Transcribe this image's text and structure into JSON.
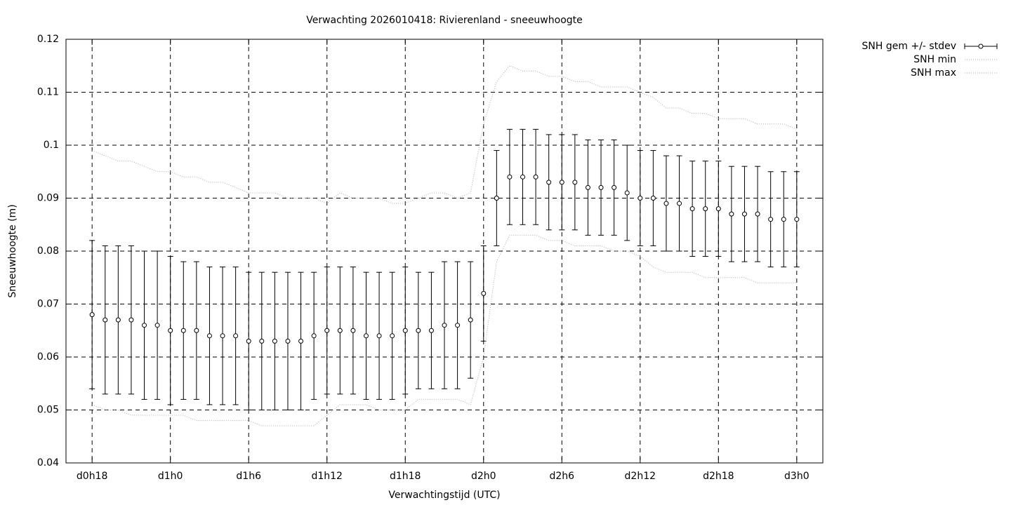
{
  "chart_data": {
    "type": "errorbar-line",
    "title": "Verwachting 2026010418: Rivierenland - sneeuwhoogte",
    "x_label": "Verwachtingstijd (UTC)",
    "y_label": "Sneeuwhoogte (m)",
    "x": [
      18,
      19,
      20,
      21,
      22,
      23,
      24,
      25,
      26,
      27,
      28,
      29,
      30,
      31,
      32,
      33,
      34,
      35,
      36,
      37,
      38,
      39,
      40,
      41,
      42,
      43,
      44,
      45,
      46,
      47,
      48,
      49,
      50,
      51,
      52,
      53,
      54,
      55,
      56,
      57,
      58,
      59,
      60,
      61,
      62,
      63,
      64,
      65,
      66,
      67,
      68,
      69,
      70,
      71,
      72
    ],
    "xlim": [
      16,
      74
    ],
    "xticks": [
      {
        "value": 18,
        "label": "d0h18"
      },
      {
        "value": 24,
        "label": "d1h0"
      },
      {
        "value": 30,
        "label": "d1h6"
      },
      {
        "value": 36,
        "label": "d1h12"
      },
      {
        "value": 42,
        "label": "d1h18"
      },
      {
        "value": 48,
        "label": "d2h0"
      },
      {
        "value": 54,
        "label": "d2h6"
      },
      {
        "value": 60,
        "label": "d2h12"
      },
      {
        "value": 66,
        "label": "d2h18"
      },
      {
        "value": 72,
        "label": "d3h0"
      }
    ],
    "ylim": [
      0.04,
      0.12
    ],
    "yticks": [
      0.04,
      0.05,
      0.06,
      0.07,
      0.08,
      0.09,
      0.1,
      0.11,
      0.12
    ],
    "grid": true,
    "legend": "outside-top-right",
    "series": [
      {
        "name": "SNH gem +/- stdev",
        "color": "#000000",
        "style": "errorbar",
        "values": [
          0.068,
          0.067,
          0.067,
          0.067,
          0.066,
          0.066,
          0.065,
          0.065,
          0.065,
          0.064,
          0.064,
          0.064,
          0.063,
          0.063,
          0.063,
          0.063,
          0.063,
          0.064,
          0.065,
          0.065,
          0.065,
          0.064,
          0.064,
          0.064,
          0.065,
          0.065,
          0.065,
          0.066,
          0.066,
          0.067,
          0.072,
          0.09,
          0.094,
          0.094,
          0.094,
          0.093,
          0.093,
          0.093,
          0.092,
          0.092,
          0.092,
          0.091,
          0.09,
          0.09,
          0.089,
          0.089,
          0.088,
          0.088,
          0.088,
          0.087,
          0.087,
          0.087,
          0.086,
          0.086,
          0.086
        ],
        "errors": [
          0.014,
          0.014,
          0.014,
          0.014,
          0.014,
          0.014,
          0.014,
          0.013,
          0.013,
          0.013,
          0.013,
          0.013,
          0.013,
          0.013,
          0.013,
          0.013,
          0.013,
          0.012,
          0.012,
          0.012,
          0.012,
          0.012,
          0.012,
          0.012,
          0.012,
          0.011,
          0.011,
          0.012,
          0.012,
          0.011,
          0.009,
          0.009,
          0.009,
          0.009,
          0.009,
          0.009,
          0.009,
          0.009,
          0.009,
          0.009,
          0.009,
          0.009,
          0.009,
          0.009,
          0.009,
          0.009,
          0.009,
          0.009,
          0.009,
          0.009,
          0.009,
          0.009,
          0.009,
          0.009,
          0.009
        ]
      },
      {
        "name": "SNH min",
        "color": "#aaaaaa",
        "style": "dotted",
        "values": [
          0.051,
          0.05,
          0.05,
          0.049,
          0.049,
          0.049,
          0.049,
          0.049,
          0.048,
          0.048,
          0.048,
          0.048,
          0.048,
          0.047,
          0.047,
          0.047,
          0.047,
          0.047,
          0.049,
          0.051,
          0.051,
          0.051,
          0.05,
          0.05,
          0.05,
          0.052,
          0.052,
          0.052,
          0.052,
          0.051,
          0.06,
          0.078,
          0.083,
          0.083,
          0.083,
          0.082,
          0.082,
          0.081,
          0.081,
          0.081,
          0.08,
          0.08,
          0.079,
          0.077,
          0.076,
          0.076,
          0.076,
          0.075,
          0.075,
          0.075,
          0.075,
          0.074,
          0.074,
          0.074,
          0.074
        ]
      },
      {
        "name": "SNH max",
        "color": "#aaaaaa",
        "style": "dotted",
        "values": [
          0.099,
          0.098,
          0.097,
          0.097,
          0.096,
          0.095,
          0.095,
          0.094,
          0.094,
          0.093,
          0.093,
          0.092,
          0.091,
          0.091,
          0.091,
          0.09,
          0.09,
          0.09,
          0.089,
          0.091,
          0.09,
          0.09,
          0.09,
          0.089,
          0.089,
          0.09,
          0.091,
          0.091,
          0.09,
          0.091,
          0.104,
          0.112,
          0.115,
          0.114,
          0.114,
          0.113,
          0.113,
          0.112,
          0.112,
          0.111,
          0.111,
          0.111,
          0.11,
          0.109,
          0.107,
          0.107,
          0.106,
          0.106,
          0.105,
          0.105,
          0.105,
          0.104,
          0.104,
          0.104,
          0.103
        ]
      }
    ]
  }
}
